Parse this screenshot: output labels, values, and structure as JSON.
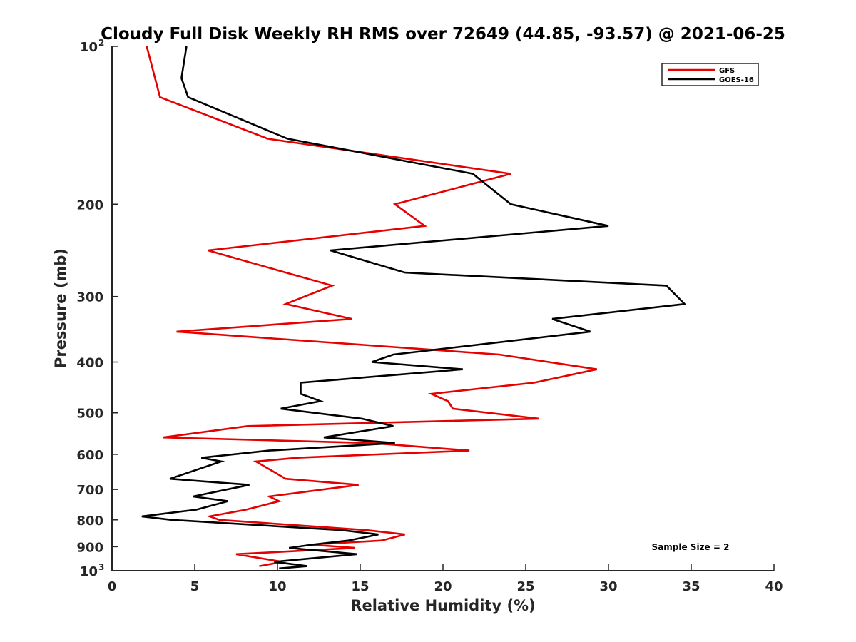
{
  "chart_data": {
    "type": "line",
    "title": "Cloudy Full Disk Weekly RH RMS over 72649 (44.85, -93.57) @ 2021-06-25",
    "xlabel": "Relative Humidity (%)",
    "ylabel": "Pressure (mb)",
    "xlim": [
      0,
      40
    ],
    "ylim": [
      100,
      1000
    ],
    "y_scale": "log",
    "y_reversed": true,
    "x_ticks": [
      0,
      5,
      10,
      15,
      20,
      25,
      30,
      35,
      40
    ],
    "y_ticks": [
      {
        "value": 100,
        "label": "10",
        "sup": "2"
      },
      {
        "value": 200,
        "label": "200"
      },
      {
        "value": 300,
        "label": "300"
      },
      {
        "value": 400,
        "label": "400"
      },
      {
        "value": 500,
        "label": "500"
      },
      {
        "value": 600,
        "label": "600"
      },
      {
        "value": 700,
        "label": "700"
      },
      {
        "value": 800,
        "label": "800"
      },
      {
        "value": 900,
        "label": "900"
      },
      {
        "value": 1000,
        "label": "10",
        "sup": "3"
      }
    ],
    "grid": false,
    "legend_position": "top-right",
    "annotation": "Sample Size = 2",
    "series": [
      {
        "name": "GFS",
        "color": "#e60000",
        "points": [
          [
            2.1,
            100
          ],
          [
            2.9,
            125
          ],
          [
            9.4,
            150
          ],
          [
            24.1,
            175
          ],
          [
            17.1,
            200
          ],
          [
            18.9,
            220
          ],
          [
            5.8,
            245
          ],
          [
            10.5,
            270
          ],
          [
            13.3,
            286
          ],
          [
            10.5,
            310
          ],
          [
            14.5,
            331
          ],
          [
            3.9,
            350
          ],
          [
            23.4,
            387
          ],
          [
            29.3,
            413
          ],
          [
            25.5,
            438
          ],
          [
            19.3,
            460
          ],
          [
            20.3,
            475
          ],
          [
            20.6,
            491
          ],
          [
            25.8,
            513
          ],
          [
            8.2,
            530
          ],
          [
            3.1,
            557
          ],
          [
            15.7,
            571
          ],
          [
            21.6,
            590
          ],
          [
            11.2,
            609
          ],
          [
            8.7,
            619
          ],
          [
            10.5,
            668
          ],
          [
            14.9,
            686
          ],
          [
            9.5,
            722
          ],
          [
            10.1,
            737
          ],
          [
            8.1,
            765
          ],
          [
            5.9,
            788
          ],
          [
            6.5,
            800
          ],
          [
            15.4,
            837
          ],
          [
            17.7,
            853
          ],
          [
            16.3,
            876
          ],
          [
            12.0,
            892
          ],
          [
            14.7,
            905
          ],
          [
            7.5,
            930
          ],
          [
            10.3,
            962
          ],
          [
            8.9,
            980
          ]
        ]
      },
      {
        "name": "GOES-16",
        "color": "#000000",
        "points": [
          [
            4.5,
            100
          ],
          [
            4.2,
            115
          ],
          [
            4.6,
            125
          ],
          [
            10.6,
            150
          ],
          [
            21.8,
            175
          ],
          [
            24.1,
            200
          ],
          [
            30.0,
            220
          ],
          [
            13.2,
            245
          ],
          [
            17.7,
            270
          ],
          [
            33.5,
            286
          ],
          [
            34.6,
            310
          ],
          [
            26.6,
            331
          ],
          [
            28.9,
            350
          ],
          [
            17.0,
            387
          ],
          [
            15.7,
            400
          ],
          [
            21.2,
            413
          ],
          [
            11.4,
            438
          ],
          [
            11.4,
            460
          ],
          [
            12.6,
            475
          ],
          [
            10.2,
            491
          ],
          [
            15.1,
            513
          ],
          [
            17.0,
            530
          ],
          [
            12.8,
            557
          ],
          [
            17.1,
            571
          ],
          [
            9.5,
            590
          ],
          [
            5.4,
            609
          ],
          [
            6.6,
            619
          ],
          [
            3.5,
            668
          ],
          [
            8.3,
            686
          ],
          [
            4.9,
            722
          ],
          [
            7.0,
            737
          ],
          [
            5.1,
            765
          ],
          [
            1.8,
            788
          ],
          [
            3.6,
            800
          ],
          [
            13.9,
            837
          ],
          [
            16.1,
            853
          ],
          [
            14.3,
            876
          ],
          [
            12.1,
            892
          ],
          [
            10.7,
            905
          ],
          [
            14.8,
            930
          ],
          [
            9.8,
            962
          ],
          [
            11.8,
            980
          ],
          [
            10.1,
            990
          ]
        ]
      }
    ]
  }
}
